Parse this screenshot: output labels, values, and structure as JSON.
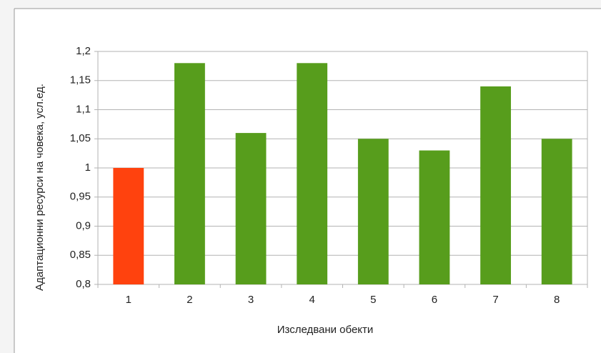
{
  "chart_data": {
    "type": "bar",
    "y_label": "Адаптационни ресурси на човека, усл.ед.",
    "x_label": "Изследвани обекти",
    "categories": [
      "1",
      "2",
      "3",
      "4",
      "5",
      "6",
      "7",
      "8"
    ],
    "values": [
      1,
      1.18,
      1.06,
      1.18,
      1.05,
      1.03,
      1.14,
      1.05
    ],
    "colors": [
      "#ff420e",
      "#579d1c",
      "#579d1c",
      "#579d1c",
      "#579d1c",
      "#579d1c",
      "#579d1c",
      "#579d1c"
    ],
    "ylim": [
      0.8,
      1.2
    ],
    "yticks": [
      {
        "value": 0.8,
        "label": "0,8"
      },
      {
        "value": 0.85,
        "label": "0,85"
      },
      {
        "value": 0.9,
        "label": "0,9"
      },
      {
        "value": 0.95,
        "label": "0,95"
      },
      1,
      {
        "value": 1.05,
        "label": "1,05"
      },
      {
        "value": 1.1,
        "label": "1,1"
      },
      {
        "value": 1.15,
        "label": "1,15"
      },
      {
        "value": 1.2,
        "label": "1,2"
      }
    ],
    "grid": true
  }
}
